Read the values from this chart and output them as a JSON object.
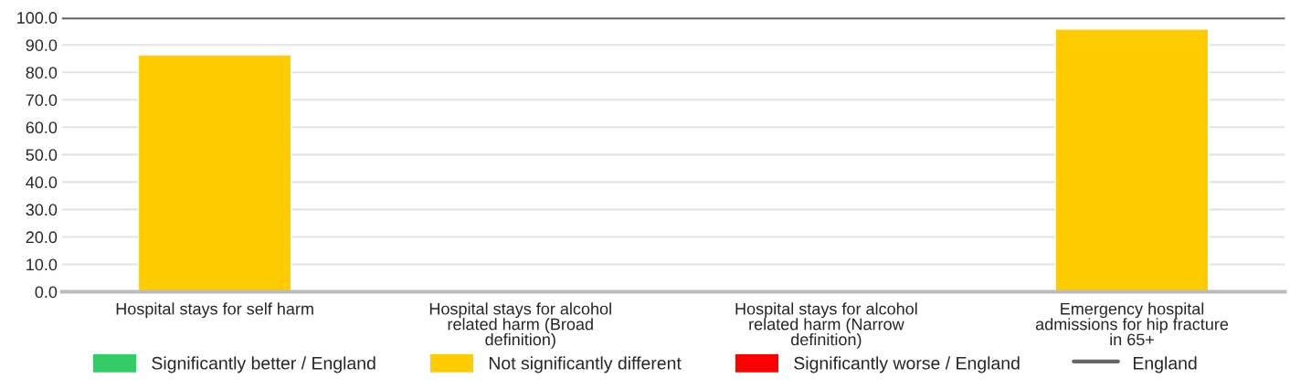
{
  "chart_data": {
    "type": "bar",
    "categories": [
      "Hospital stays for self harm",
      "Hospital stays for alcohol related harm (Broad definition)",
      "Hospital stays for alcohol related harm (Narrow definition)",
      "Emergency hospital admissions for hip fracture in 65+"
    ],
    "series": [
      {
        "name": "Significantly better / England",
        "color": "#33cc66",
        "values": [
          null,
          null,
          null,
          null
        ]
      },
      {
        "name": "Not significantly different",
        "color": "#ffcc00",
        "values": [
          86.4,
          null,
          null,
          95.8
        ]
      },
      {
        "name": "Significantly worse / England",
        "color": "#ff0000",
        "values": [
          null,
          null,
          null,
          null
        ]
      }
    ],
    "ref_lines": [
      {
        "axis": "y",
        "value": 100,
        "label": "England",
        "color": "#666666"
      }
    ],
    "ylim": [
      0,
      100
    ],
    "yticks": [
      {
        "value": 0,
        "label": "0.0"
      },
      {
        "value": 10,
        "label": "10.0"
      },
      {
        "value": 20,
        "label": "20.0"
      },
      {
        "value": 30,
        "label": "30.0"
      },
      {
        "value": 40,
        "label": "40.0"
      },
      {
        "value": 50,
        "label": "50.0"
      },
      {
        "value": 60,
        "label": "60.0"
      },
      {
        "value": 70,
        "label": "70.0"
      },
      {
        "value": 80,
        "label": "80.0"
      },
      {
        "value": 90,
        "label": "90.0"
      },
      {
        "value": 100,
        "label": "100.0"
      }
    ],
    "grid": "y",
    "legend": "bottom"
  }
}
